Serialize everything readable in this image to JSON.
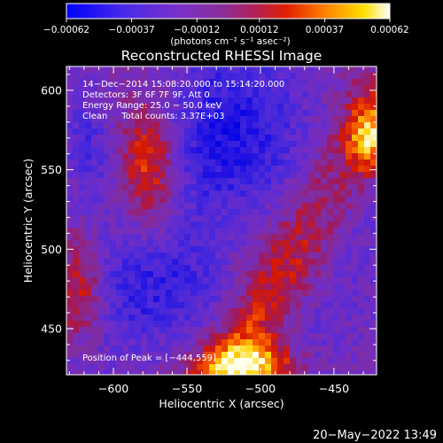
{
  "chart_data": {
    "type": "heatmap",
    "title": "Reconstructed RHESSI Image",
    "xlabel": "Heliocentric X (arcsec)",
    "ylabel": "Heliocentric Y (arcsec)",
    "xlim": [
      -632,
      -421
    ],
    "ylim": [
      421,
      615
    ],
    "x_ticks": [
      -600,
      -550,
      -500,
      -450
    ],
    "x_tick_labels": [
      "−600",
      "−550",
      "−500",
      "−450"
    ],
    "y_ticks": [
      450,
      500,
      550,
      600
    ],
    "y_tick_labels": [
      "450",
      "500",
      "550",
      "600"
    ],
    "colorbar": {
      "min": -0.00062,
      "max": 0.00062,
      "ticks": [
        -0.00062,
        -0.00037,
        -0.00012,
        0.00012,
        0.00037,
        0.00062
      ],
      "tick_labels": [
        "−0.00062",
        "−0.00037",
        "−0.00012",
        "0.00012",
        "0.00037",
        "0.00062"
      ],
      "units_label": "(photons cm⁻² s⁻¹ asec⁻²)"
    },
    "annotations": [
      "14−Dec−2014 15:08:20.000 to 15:14:20.000",
      "Detectors: 3F 6F 7F 9F, Att 0",
      "Energy Range: 25.0 − 50.0 keV",
      "Clean     Total counts: 3.37E+03"
    ],
    "peak_label": "Position of Peak = [−444,559]",
    "peak_position": [
      -444,
      559
    ],
    "timestamp": "20−May−2022 13:49",
    "colors": {
      "stops": [
        "#0000ff",
        "#6a2cd8",
        "#8a2f9a",
        "#b0205a",
        "#e02000",
        "#ff8000",
        "#ffe000",
        "#ffffff"
      ]
    }
  }
}
